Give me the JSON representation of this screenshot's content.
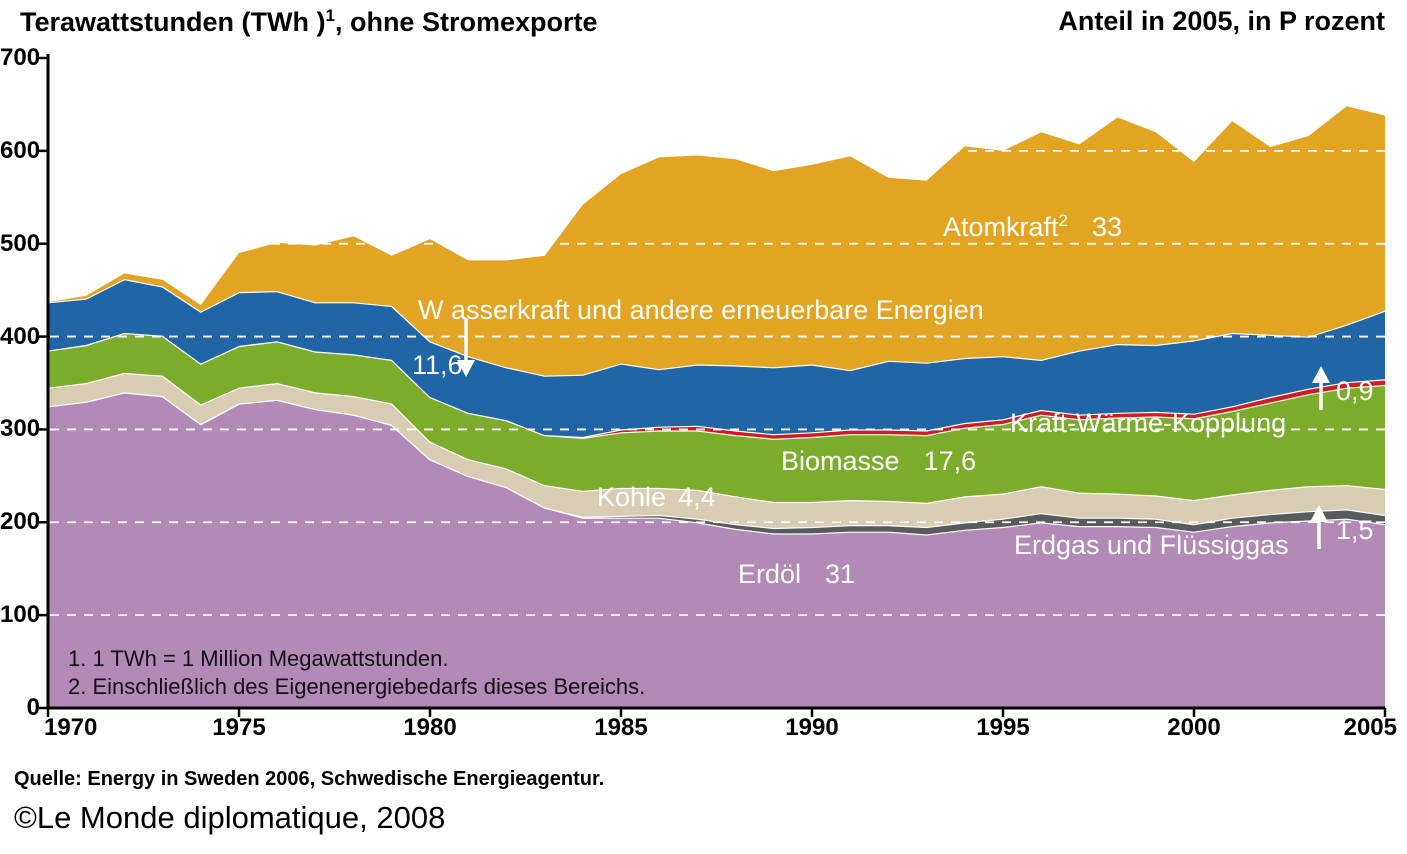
{
  "header": {
    "title_left": {
      "text": "Terawattstunden (TWh )",
      "sup": "1",
      "suffix": ", ohne Stromexporte"
    },
    "title_right": "Anteil in 2005, in P rozent"
  },
  "chart_data": {
    "type": "area",
    "stacked": true,
    "unit": "TWh",
    "title": "Terawattstunden (TWh), ohne Stromexporte",
    "legend_position": "labels-inside-areas",
    "grid": "white-dashed-horizontal",
    "x_axis": {
      "min": 1970,
      "max": 2005,
      "ticks": [
        1970,
        1975,
        1980,
        1985,
        1990,
        1995,
        2000,
        2005
      ]
    },
    "y_axis": {
      "min": 0,
      "max": 700,
      "step": 100,
      "ticks": [
        700,
        600,
        500,
        400,
        300,
        200,
        100,
        0
      ]
    },
    "years": [
      1970,
      1971,
      1972,
      1973,
      1974,
      1975,
      1976,
      1977,
      1978,
      1979,
      1980,
      1981,
      1982,
      1983,
      1984,
      1985,
      1986,
      1987,
      1988,
      1989,
      1990,
      1991,
      1992,
      1993,
      1994,
      1995,
      1996,
      1997,
      1998,
      1999,
      2000,
      2001,
      2002,
      2003,
      2004,
      2005
    ],
    "series": [
      {
        "id": "erdoel",
        "name": "Erdöl",
        "share_2005": "31",
        "color": "#b389b7",
        "values": [
          325,
          330,
          340,
          336,
          306,
          328,
          332,
          322,
          316,
          305,
          268,
          250,
          238,
          216,
          205,
          205,
          205,
          200,
          193,
          188,
          188,
          190,
          190,
          187,
          192,
          195,
          200,
          196,
          196,
          195,
          190,
          196,
          200,
          202,
          204,
          198
        ]
      },
      {
        "id": "erdgas",
        "name": "Erdgas und Flüssiggas",
        "share_2005": "1,5",
        "color": "#595a5c",
        "values": [
          0,
          0,
          0,
          0,
          0,
          0,
          0,
          0,
          0,
          0,
          0,
          0,
          0,
          0,
          1,
          2,
          3,
          4,
          5,
          6,
          7,
          7,
          7,
          8,
          8,
          9,
          10,
          9,
          9,
          9,
          8,
          9,
          9,
          10,
          10,
          10
        ]
      },
      {
        "id": "kohle",
        "name": "Kohle",
        "share_2005": "4,4",
        "color": "#d8ccb3",
        "values": [
          20,
          20,
          21,
          22,
          21,
          17,
          18,
          18,
          20,
          23,
          19,
          18,
          20,
          24,
          28,
          30,
          29,
          31,
          30,
          28,
          27,
          27,
          26,
          26,
          28,
          27,
          29,
          27,
          26,
          25,
          26,
          25,
          26,
          27,
          26,
          28
        ]
      },
      {
        "id": "biomasse",
        "name": "Biomasse",
        "share_2005": "17,6",
        "color": "#7cac2b",
        "values": [
          40,
          41,
          43,
          43,
          44,
          45,
          45,
          44,
          45,
          47,
          48,
          50,
          52,
          54,
          57,
          60,
          62,
          64,
          66,
          68,
          70,
          71,
          72,
          73,
          74,
          75,
          77,
          79,
          82,
          85,
          88,
          90,
          94,
          99,
          105,
          112
        ]
      },
      {
        "id": "kwk",
        "name": "Kraft-Wärme-Kopplung",
        "share_2005": "0,9",
        "color": "#d01b1f",
        "values": [
          0,
          0,
          0,
          0,
          0,
          0,
          0,
          0,
          0,
          0,
          0,
          0,
          0,
          0,
          1,
          3,
          4,
          5,
          5,
          5,
          5,
          5,
          5,
          5,
          5,
          5,
          5,
          5,
          5,
          5,
          5,
          5,
          6,
          6,
          6,
          6
        ]
      },
      {
        "id": "wasserkraft",
        "name": "Wasserkraft und andere erneuerbare Energien",
        "share_2005": "11,6",
        "color": "#2065a5",
        "values": [
          52,
          50,
          58,
          53,
          56,
          58,
          54,
          53,
          56,
          58,
          60,
          61,
          57,
          64,
          67,
          71,
          62,
          66,
          70,
          72,
          73,
          64,
          74,
          73,
          70,
          68,
          54,
          69,
          74,
          72,
          79,
          79,
          67,
          56,
          62,
          74
        ]
      },
      {
        "id": "atomkraft",
        "name": "Atomkraft",
        "sup": "2",
        "share_2005": "33",
        "color": "#e2a423",
        "values": [
          0,
          3,
          6,
          7,
          7,
          42,
          52,
          61,
          71,
          54,
          110,
          103,
          115,
          129,
          183,
          204,
          228,
          225,
          222,
          211,
          215,
          230,
          197,
          196,
          228,
          221,
          245,
          222,
          244,
          229,
          192,
          228,
          202,
          216,
          235,
          210
        ]
      }
    ]
  },
  "annotations": {
    "wasserkraft_text": "W asserkraft und andere erneuerbare Energien"
  },
  "footnotes": [
    "1. 1 TWh = 1 Million Megawattstunden.",
    "2. Einschließlich des Eigenenergiebedarfs dieses Bereichs."
  ],
  "source": "Quelle: Energy in Sweden 2006, Schwedische Energieagentur.",
  "credit": "©Le Monde diplomatique, 2008"
}
